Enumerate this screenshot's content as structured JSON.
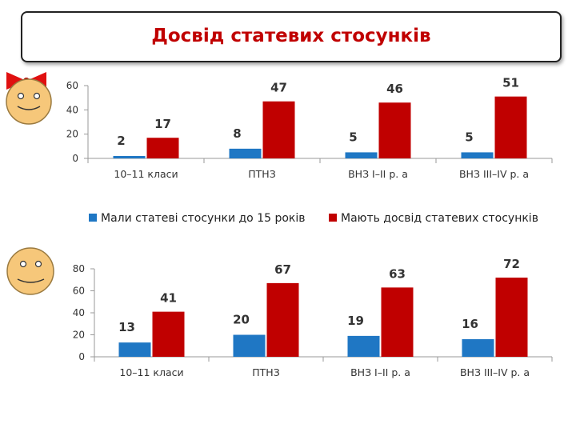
{
  "title": "Досвід статевих стосунків",
  "legend": {
    "series1": "Мали статеві стосунки до 15 років",
    "series2": "Мають досвід статевих стосунків",
    "placement": "between charts"
  },
  "colors": {
    "series1": "#1f77c4",
    "series2": "#c00000",
    "title": "#c00000",
    "face_fill": "#f6c77a",
    "bow": "#e01010"
  },
  "icons": [
    "girl-face-icon",
    "boy-face-icon"
  ],
  "chart_data": [
    {
      "type": "bar",
      "categories": [
        "10–11 класи",
        "ПТНЗ",
        "ВНЗ I–II р. а",
        "ВНЗ III–IV р. а"
      ],
      "series": [
        {
          "name": "Мали статеві стосунки до 15 років",
          "values": [
            2,
            8,
            5,
            5
          ]
        },
        {
          "name": "Мають досвід статевих стосунків",
          "values": [
            17,
            47,
            46,
            51
          ]
        }
      ],
      "ylim": [
        0,
        60
      ],
      "yticks": [
        0,
        20,
        40,
        60
      ],
      "grid": false
    },
    {
      "type": "bar",
      "categories": [
        "10–11 класи",
        "ПТНЗ",
        "ВНЗ I–II р. а",
        "ВНЗ III–IV р. а"
      ],
      "series": [
        {
          "name": "Мали статеві стосунки до 15 років",
          "values": [
            13,
            20,
            19,
            16
          ]
        },
        {
          "name": "Мають досвід статевих стосунків",
          "values": [
            41,
            67,
            63,
            72
          ]
        }
      ],
      "ylim": [
        0,
        80
      ],
      "yticks": [
        0,
        20,
        40,
        60,
        80
      ],
      "grid": false
    }
  ]
}
